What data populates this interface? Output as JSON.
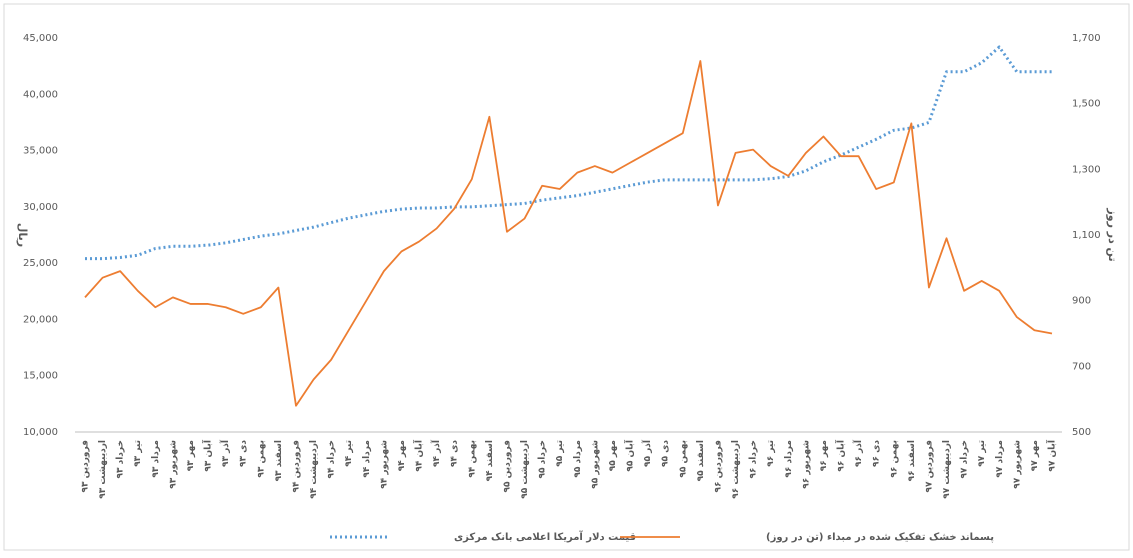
{
  "chart_data": {
    "type": "line",
    "categories": [
      "فروردین ۹۳",
      "اردیبهشت ۹۳",
      "خرداد ۹۳",
      "تیر ۹۳",
      "مرداد ۹۳",
      "شهریور ۹۳",
      "مهر ۹۳",
      "آبان ۹۳",
      "آذر ۹۳",
      "دی ۹۳",
      "بهمن ۹۳",
      "اسفند ۹۳",
      "فروردین ۹۴",
      "اردیبهشت ۹۴",
      "خرداد ۹۴",
      "تیر ۹۴",
      "مرداد ۹۴",
      "شهریور ۹۴",
      "مهر ۹۴",
      "آبان ۹۴",
      "آذر ۹۴",
      "دی ۹۴",
      "بهمن ۹۴",
      "اسفند ۹۴",
      "فروردین ۹۵",
      "اردیبهشت ۹۵",
      "خرداد ۹۵",
      "تیر ۹۵",
      "مرداد ۹۵",
      "شهریور ۹۵",
      "مهر ۹۵",
      "آبان ۹۵",
      "آذر ۹۵",
      "دی ۹۵",
      "بهمن ۹۵",
      "اسفند ۹۵",
      "فروردین ۹۶",
      "اردیبهشت ۹۶",
      "خرداد ۹۶",
      "تیر ۹۶",
      "مرداد ۹۶",
      "شهریور ۹۶",
      "مهر ۹۶",
      "آبان ۹۶",
      "آذر ۹۶",
      "دی ۹۶",
      "بهمن ۹۶",
      "اسفند ۹۶",
      "فروردین ۹۷",
      "اردیبهشت ۹۷",
      "خرداد ۹۷",
      "تیر ۹۷",
      "مرداد ۹۷",
      "شهریور ۹۷",
      "مهر ۹۷",
      "آبان ۹۷"
    ],
    "series": [
      {
        "name": "قیمت دلار آمریکا اعلامی بانک مرکزی",
        "color": "#5b9bd5",
        "dash": true,
        "values": [
          25400,
          25400,
          25500,
          25700,
          26300,
          26500,
          26500,
          26600,
          26800,
          27100,
          27400,
          27600,
          27900,
          28200,
          28600,
          29000,
          29300,
          29600,
          29800,
          29900,
          29900,
          30000,
          30000,
          30100,
          30200,
          30300,
          30600,
          30800,
          31000,
          31300,
          31600,
          31900,
          32200,
          32400,
          32400,
          32400,
          32400,
          32400,
          32400,
          32500,
          32700,
          33200,
          34000,
          34600,
          35300,
          36000,
          36800,
          37000,
          37500,
          42000,
          42000,
          42800,
          44200,
          42000,
          42000,
          42000
        ]
      },
      {
        "name": "پسماند خشک تفکیک شده در مبداء (تن در روز)",
        "color": "#ed7d31",
        "axis": "y2",
        "values": [
          910,
          970,
          990,
          930,
          880,
          910,
          890,
          890,
          880,
          860,
          880,
          940,
          580,
          660,
          720,
          810,
          900,
          990,
          1050,
          1080,
          1120,
          1180,
          1270,
          1460,
          1110,
          1150,
          1250,
          1240,
          1290,
          1310,
          1290,
          1320,
          1350,
          1380,
          1410,
          1630,
          1190,
          1350,
          1360,
          1310,
          1280,
          1350,
          1400,
          1340,
          1340,
          1240,
          1260,
          1440,
          940,
          1090,
          930,
          960,
          930,
          850,
          810,
          800
        ]
      }
    ],
    "ylabel": "ریال",
    "y2label": "تن در روز",
    "ylim": [
      10000,
      45000
    ],
    "yticks": [
      {
        "value": 10000,
        "label": "10,000"
      },
      {
        "value": 15000,
        "label": "15,000"
      },
      {
        "value": 20000,
        "label": "20,000"
      },
      {
        "value": 25000,
        "label": "25,000"
      },
      {
        "value": 30000,
        "label": "30,000"
      },
      {
        "value": 35000,
        "label": "35,000"
      },
      {
        "value": 40000,
        "label": "40,000"
      },
      {
        "value": 45000,
        "label": "45,000"
      }
    ],
    "y2lim": [
      500,
      1700
    ],
    "y2ticks": [
      500,
      700,
      900,
      {
        "value": 1100,
        "label": "1,100"
      },
      {
        "value": 1300,
        "label": "1,300"
      },
      {
        "value": 1500,
        "label": "1,500"
      },
      {
        "value": 1700,
        "label": "1,700"
      }
    ],
    "legend": "bottom"
  }
}
